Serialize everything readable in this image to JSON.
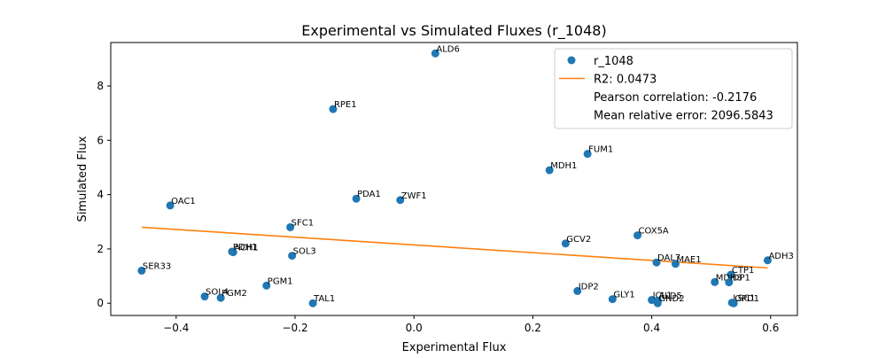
{
  "chart_data": {
    "type": "scatter",
    "title": "Experimental vs Simulated Fluxes (r_1048)",
    "xlabel": "Experimental Flux",
    "ylabel": "Simulated Flux",
    "xlim": [
      -0.51,
      0.645
    ],
    "ylim": [
      -0.45,
      9.6
    ],
    "xticks": [
      -0.4,
      -0.2,
      0.0,
      0.2,
      0.4,
      0.6
    ],
    "xtick_labels": [
      "−0.4",
      "−0.2",
      "0.0",
      "0.2",
      "0.4",
      "0.6"
    ],
    "yticks": [
      0,
      2,
      4,
      6,
      8
    ],
    "ytick_labels": [
      "0",
      "2",
      "4",
      "6",
      "8"
    ],
    "grid": false,
    "legend_position": "top-right",
    "colors": {
      "points": "#1f77b4",
      "fit": "#ff7f0e"
    },
    "series": [
      {
        "name": "r_1048",
        "points": [
          {
            "label": "ALD6",
            "x": 0.036,
            "y": 9.2
          },
          {
            "label": "RPE1",
            "x": -0.136,
            "y": 7.15
          },
          {
            "label": "FUM1",
            "x": 0.292,
            "y": 5.5
          },
          {
            "label": "MDH1",
            "x": 0.228,
            "y": 4.9
          },
          {
            "label": "PDA1",
            "x": -0.097,
            "y": 3.85
          },
          {
            "label": "ZWF1",
            "x": -0.023,
            "y": 3.8
          },
          {
            "label": "OAC1",
            "x": -0.41,
            "y": 3.6
          },
          {
            "label": "SFC1",
            "x": -0.208,
            "y": 2.8
          },
          {
            "label": "COX5A",
            "x": 0.376,
            "y": 2.5
          },
          {
            "label": "GCV2",
            "x": 0.255,
            "y": 2.2
          },
          {
            "label": "PDH1",
            "x": -0.306,
            "y": 1.9
          },
          {
            "label": "ACH1",
            "x": -0.304,
            "y": 1.88
          },
          {
            "label": "SOL3",
            "x": -0.205,
            "y": 1.75
          },
          {
            "label": "DAL7",
            "x": 0.408,
            "y": 1.5
          },
          {
            "label": "MAE1",
            "x": 0.44,
            "y": 1.45
          },
          {
            "label": "ADH3",
            "x": 0.595,
            "y": 1.58
          },
          {
            "label": "SER33",
            "x": -0.458,
            "y": 1.2
          },
          {
            "label": "CTP1",
            "x": 0.533,
            "y": 1.05
          },
          {
            "label": "MDH3",
            "x": 0.506,
            "y": 0.78
          },
          {
            "label": "IDP1",
            "x": 0.53,
            "y": 0.77
          },
          {
            "label": "PGM1",
            "x": -0.248,
            "y": 0.65
          },
          {
            "label": "IDP2",
            "x": 0.275,
            "y": 0.45
          },
          {
            "label": "SOL4",
            "x": -0.352,
            "y": 0.25
          },
          {
            "label": "PGM2",
            "x": -0.325,
            "y": 0.2
          },
          {
            "label": "GLY1",
            "x": 0.334,
            "y": 0.15
          },
          {
            "label": "ICL1",
            "x": 0.4,
            "y": 0.12
          },
          {
            "label": "ALD5",
            "x": 0.41,
            "y": 0.1
          },
          {
            "label": "GND2",
            "x": 0.41,
            "y": 0.0
          },
          {
            "label": "LSC1",
            "x": 0.535,
            "y": 0.02
          },
          {
            "label": "GPD1",
            "x": 0.538,
            "y": 0.0
          },
          {
            "label": "TAL1",
            "x": -0.17,
            "y": 0.0
          }
        ]
      },
      {
        "name": "R2: 0.0473",
        "type": "line",
        "x": [
          -0.458,
          0.595
        ],
        "y": [
          2.8,
          1.3
        ]
      }
    ],
    "legend": [
      {
        "label": "r_1048",
        "marker": "point"
      },
      {
        "label": "R2: 0.0473",
        "marker": "line"
      },
      {
        "label": "Pearson correlation: -0.2176",
        "marker": "none"
      },
      {
        "label": "Mean relative error: 2096.5843",
        "marker": "none"
      }
    ]
  }
}
